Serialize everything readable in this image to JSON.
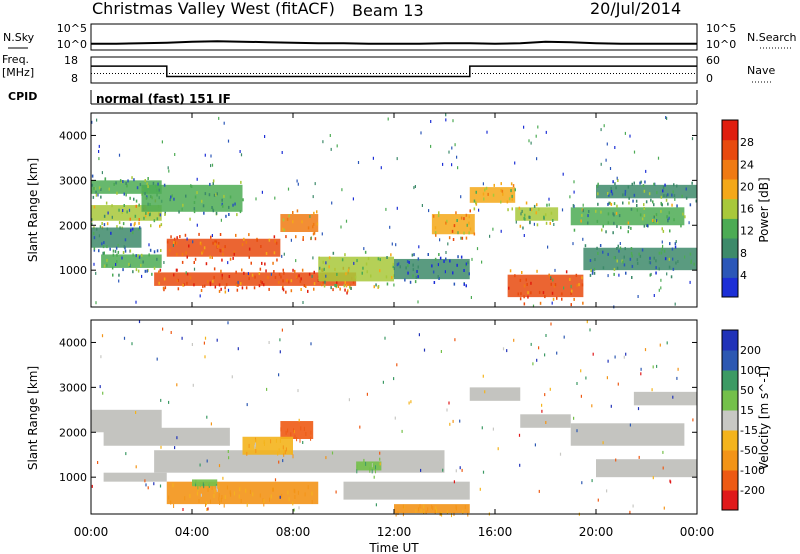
{
  "header": {
    "title": "Christmas Valley West (fitACF)",
    "beam": "Beam 13",
    "date": "20/Jul/2014"
  },
  "top_panels": {
    "nsky_label": "N.Sky",
    "nsky_ticks": [
      "10^5",
      "10^0"
    ],
    "nsearch_label": "N.Search",
    "nsearch_ticks": [
      "10^5",
      "10^0"
    ],
    "freq_label": "Freq.",
    "freq_unit": "[MHz]",
    "freq_ticks": [
      "18",
      "8"
    ],
    "nave_label": "Nave",
    "nave_ticks": [
      "60",
      "0"
    ],
    "cpid_label": "CPID",
    "cpid_value": "normal (fast) 151 IF"
  },
  "colors": {
    "power": [
      "#1c2fd6",
      "#2b57b8",
      "#3d8a6a",
      "#4cab54",
      "#a8c83a",
      "#f4a818",
      "#f07a12",
      "#e84a0e",
      "#e01e0e"
    ],
    "velocity": [
      "#e0191b",
      "#ee5a14",
      "#f39417",
      "#f4b41c",
      "#c8c8c4",
      "#74c04a",
      "#3c9a64",
      "#2c58b2",
      "#2032b8"
    ],
    "ground_scatter": "#c4c4c0"
  },
  "chart_data": [
    {
      "type": "line",
      "title": "N.Sky / N.Search",
      "x": [
        0,
        1,
        2,
        3,
        4,
        5,
        6,
        7,
        8,
        9,
        10,
        11,
        12,
        13,
        14,
        15,
        16,
        17,
        18,
        19,
        20,
        21,
        22,
        23,
        24
      ],
      "series": [
        {
          "name": "N.Sky",
          "values": [
            1.2,
            1.2,
            1.3,
            1.4,
            1.6,
            1.7,
            1.6,
            1.5,
            1.4,
            1.3,
            1.3,
            1.2,
            1.2,
            1.2,
            1.3,
            1.3,
            1.2,
            1.3,
            1.6,
            1.5,
            1.3,
            1.2,
            1.2,
            1.2,
            1.2
          ]
        }
      ],
      "ylim": [
        0,
        5
      ],
      "log_scale": true
    },
    {
      "type": "line",
      "title": "Freq. / Nave",
      "x": [
        0,
        3,
        3,
        15,
        15,
        24
      ],
      "series": [
        {
          "name": "Freq.",
          "values": [
            14.5,
            14.5,
            10.5,
            10.5,
            14.5,
            14.5
          ]
        },
        {
          "name": "Nave",
          "values": [
            22,
            22,
            22,
            22,
            22,
            22
          ]
        }
      ],
      "ylim": [
        8,
        18
      ]
    },
    {
      "type": "heatmap",
      "title": "",
      "xlabel": "Time UT",
      "ylabel": "Slant Range [km]",
      "xticks": [
        "00:00",
        "04:00",
        "08:00",
        "12:00",
        "16:00",
        "20:00",
        "00:00"
      ],
      "yticks": [
        "1000",
        "2000",
        "3000",
        "4000"
      ],
      "ytick_values": [
        1000,
        2000,
        3000,
        4000
      ],
      "xlim": [
        0,
        24
      ],
      "ylim": [
        180,
        4500
      ],
      "colorbar_label": "Power [dB]",
      "colorbar_ticks": [
        "4",
        "8",
        "12",
        "16",
        "20",
        "24",
        "28"
      ],
      "colorbar_range": [
        0,
        32
      ],
      "regions": [
        {
          "t0": 0.0,
          "t1": 2.8,
          "r0": 2100,
          "r1": 2450,
          "level": 16
        },
        {
          "t0": 0.0,
          "t1": 2.8,
          "r0": 2700,
          "r1": 3000,
          "level": 10
        },
        {
          "t0": 0.0,
          "t1": 2.0,
          "r0": 1500,
          "r1": 1950,
          "level": 8
        },
        {
          "t0": 0.4,
          "t1": 2.8,
          "r0": 1050,
          "r1": 1350,
          "level": 10
        },
        {
          "t0": 2.0,
          "t1": 6.0,
          "r0": 2300,
          "r1": 2900,
          "level": 10
        },
        {
          "t0": 3.0,
          "t1": 7.5,
          "r0": 1300,
          "r1": 1700,
          "level": 26
        },
        {
          "t0": 7.5,
          "t1": 9.0,
          "r0": 1850,
          "r1": 2250,
          "level": 22
        },
        {
          "t0": 2.5,
          "t1": 10.5,
          "r0": 650,
          "r1": 950,
          "level": 27
        },
        {
          "t0": 9.0,
          "t1": 12.0,
          "r0": 750,
          "r1": 1300,
          "level": 14
        },
        {
          "t0": 12.0,
          "t1": 15.0,
          "r0": 800,
          "r1": 1250,
          "level": 6
        },
        {
          "t0": 13.5,
          "t1": 15.2,
          "r0": 1800,
          "r1": 2250,
          "level": 20
        },
        {
          "t0": 15.0,
          "t1": 16.8,
          "r0": 2500,
          "r1": 2850,
          "level": 18
        },
        {
          "t0": 16.8,
          "t1": 18.5,
          "r0": 2100,
          "r1": 2400,
          "level": 14
        },
        {
          "t0": 16.5,
          "t1": 19.5,
          "r0": 400,
          "r1": 900,
          "level": 26
        },
        {
          "t0": 19.0,
          "t1": 23.5,
          "r0": 2000,
          "r1": 2400,
          "level": 12
        },
        {
          "t0": 19.5,
          "t1": 24.0,
          "r0": 1000,
          "r1": 1500,
          "level": 8
        },
        {
          "t0": 20.0,
          "t1": 24.0,
          "r0": 2600,
          "r1": 2900,
          "level": 8
        }
      ]
    },
    {
      "type": "heatmap",
      "title": "",
      "xlabel": "Time UT",
      "ylabel": "Slant Range [km]",
      "xticks": [
        "00:00",
        "04:00",
        "08:00",
        "12:00",
        "16:00",
        "20:00",
        "00:00"
      ],
      "yticks": [
        "1000",
        "2000",
        "3000",
        "4000"
      ],
      "ytick_values": [
        1000,
        2000,
        3000,
        4000
      ],
      "xlim": [
        0,
        24
      ],
      "ylim": [
        180,
        4500
      ],
      "colorbar_label": "Velocity [m s^-1]",
      "colorbar_ticks": [
        "200",
        "100",
        "50",
        "15",
        "-15",
        "-50",
        "-100",
        "-200"
      ],
      "ground_scatter_regions": [
        {
          "t0": 0.0,
          "t1": 2.8,
          "r0": 2000,
          "r1": 2500
        },
        {
          "t0": 0.5,
          "t1": 5.5,
          "r0": 1700,
          "r1": 2100
        },
        {
          "t0": 2.5,
          "t1": 14.0,
          "r0": 1100,
          "r1": 1600
        },
        {
          "t0": 0.5,
          "t1": 3.0,
          "r0": 900,
          "r1": 1100
        },
        {
          "t0": 10.0,
          "t1": 15.0,
          "r0": 500,
          "r1": 900
        },
        {
          "t0": 15.0,
          "t1": 17.0,
          "r0": 2700,
          "r1": 3000
        },
        {
          "t0": 17.0,
          "t1": 19.0,
          "r0": 2100,
          "r1": 2400
        },
        {
          "t0": 19.0,
          "t1": 23.5,
          "r0": 1700,
          "r1": 2200
        },
        {
          "t0": 20.0,
          "t1": 24.0,
          "r0": 1000,
          "r1": 1400
        },
        {
          "t0": 21.5,
          "t1": 24.0,
          "r0": 2600,
          "r1": 2900
        }
      ],
      "velocity_regions": [
        {
          "t0": 3.0,
          "t1": 9.0,
          "r0": 400,
          "r1": 900,
          "velocity": -60
        },
        {
          "t0": 7.5,
          "t1": 8.8,
          "r0": 1850,
          "r1": 2250,
          "velocity": -150
        },
        {
          "t0": 6.0,
          "t1": 8.0,
          "r0": 1500,
          "r1": 1900,
          "velocity": -40
        },
        {
          "t0": 10.5,
          "t1": 11.5,
          "r0": 1150,
          "r1": 1350,
          "velocity": 40
        },
        {
          "t0": 4.0,
          "t1": 5.0,
          "r0": 800,
          "r1": 950,
          "velocity": 40
        },
        {
          "t0": 12.0,
          "t1": 15.0,
          "r0": 200,
          "r1": 400,
          "velocity": -60
        }
      ]
    }
  ]
}
